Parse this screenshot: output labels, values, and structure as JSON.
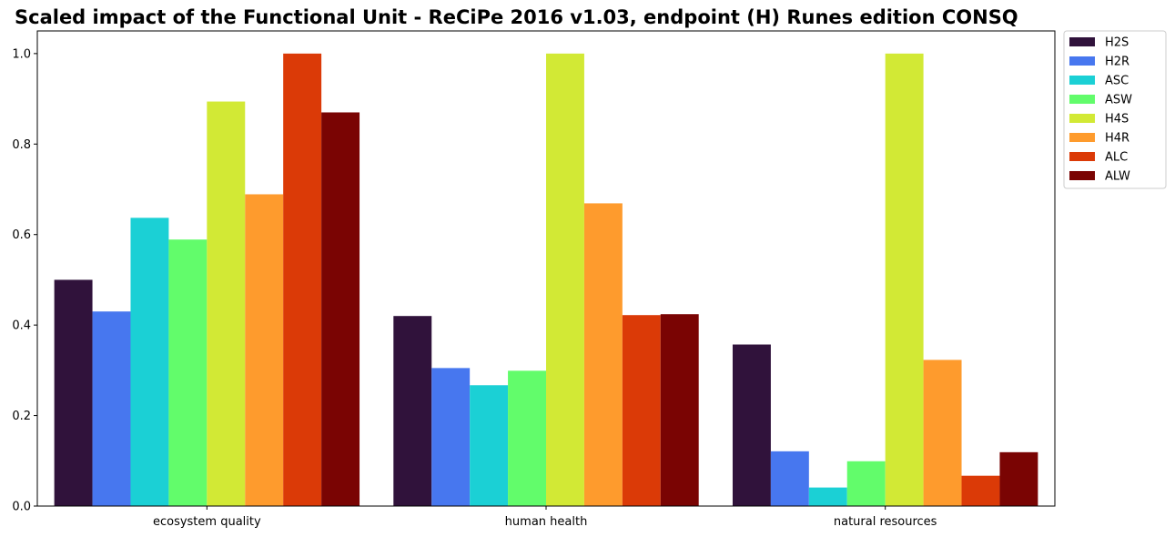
{
  "chart_data": {
    "type": "bar",
    "title": "Scaled impact of the Functional Unit - ReCiPe 2016 v1.03, endpoint (H) Runes edition CONSQ",
    "xlabel": "",
    "ylabel": "",
    "categories": [
      "ecosystem quality",
      "human health",
      "natural resources"
    ],
    "ylim": [
      0,
      1.05
    ],
    "yticks": [
      "0.0",
      "0.2",
      "0.4",
      "0.6",
      "0.8",
      "1.0"
    ],
    "grid": false,
    "legend_position": "outside-top-right",
    "series": [
      {
        "name": "H2S",
        "color": "#30123b",
        "values": [
          0.5,
          0.42,
          0.357
        ]
      },
      {
        "name": "H2R",
        "color": "#4777ef",
        "values": [
          0.43,
          0.305,
          0.121
        ]
      },
      {
        "name": "ASC",
        "color": "#1bd0d5",
        "values": [
          0.637,
          0.267,
          0.041
        ]
      },
      {
        "name": "ASW",
        "color": "#62fc6b",
        "values": [
          0.589,
          0.299,
          0.099
        ]
      },
      {
        "name": "H4S",
        "color": "#d2e935",
        "values": [
          0.894,
          1.0,
          1.0
        ]
      },
      {
        "name": "H4R",
        "color": "#fe9b2d",
        "values": [
          0.689,
          0.669,
          0.323
        ]
      },
      {
        "name": "ALC",
        "color": "#db3a07",
        "values": [
          1.0,
          0.422,
          0.067
        ]
      },
      {
        "name": "ALW",
        "color": "#7a0403",
        "values": [
          0.87,
          0.424,
          0.119
        ]
      }
    ]
  }
}
